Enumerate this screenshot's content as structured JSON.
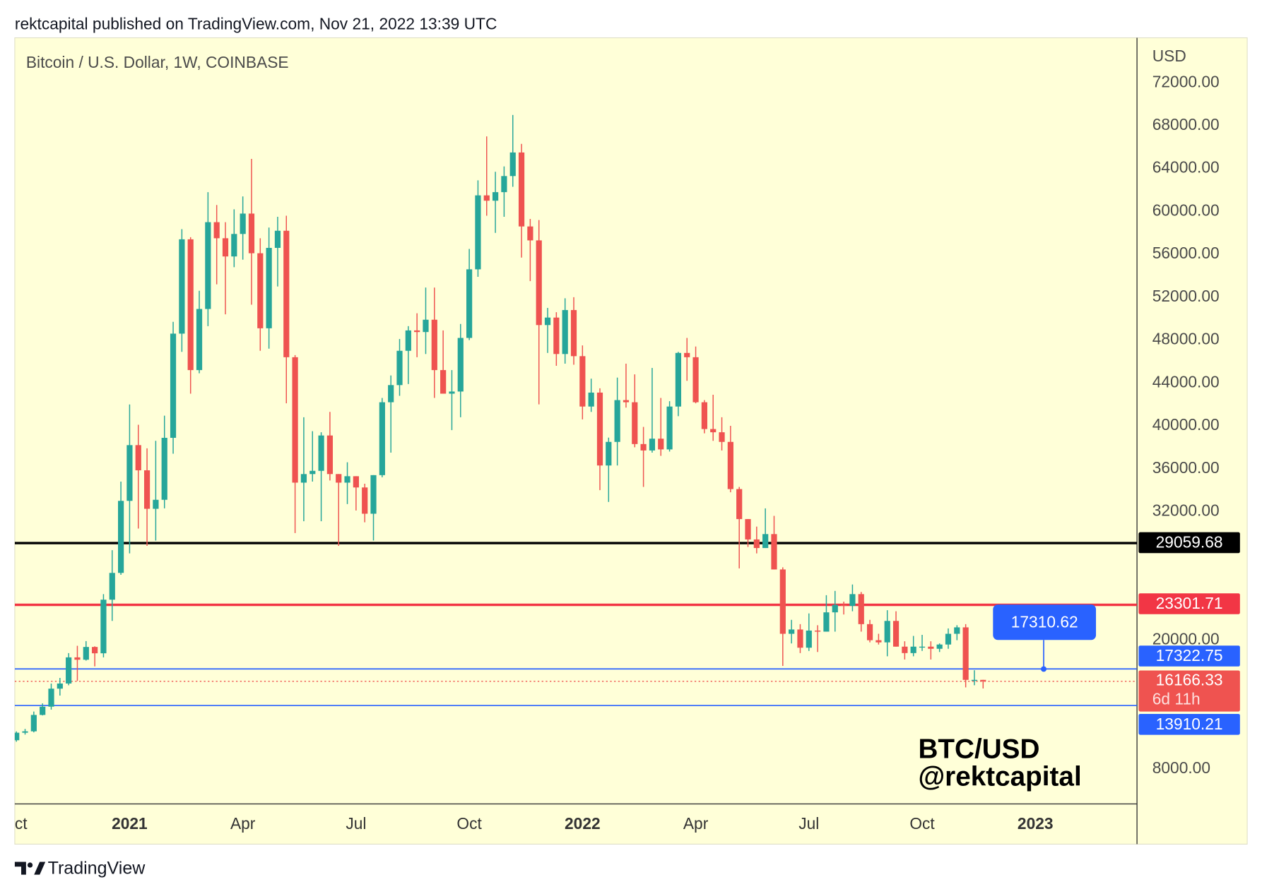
{
  "header": "rektcapital published on TradingView.com, Nov 21, 2022 13:39 UTC",
  "footer": "TradingView",
  "chart_data": {
    "type": "candlestick",
    "title": "Bitcoin / U.S. Dollar, 1W, COINBASE",
    "currency": "USD",
    "watermark": [
      "BTC/USD",
      "@rektcapital"
    ],
    "up_color": "#26a69a",
    "down_color": "#ef5350",
    "background": "#ffffd8",
    "categories": [
      "ct",
      null,
      null,
      null,
      null,
      null,
      null,
      null,
      null,
      null,
      null,
      null,
      null,
      "2021",
      null,
      null,
      null,
      null,
      null,
      null,
      null,
      null,
      null,
      null,
      null,
      null,
      "Apr",
      null,
      null,
      null,
      null,
      null,
      null,
      null,
      null,
      null,
      null,
      null,
      null,
      "Jul",
      null,
      null,
      null,
      null,
      null,
      null,
      null,
      null,
      null,
      null,
      null,
      null,
      "Oct",
      null,
      null,
      null,
      null,
      null,
      null,
      null,
      null,
      null,
      null,
      null,
      null,
      "2022",
      null,
      null,
      null,
      null,
      null,
      null,
      null,
      null,
      null,
      null,
      null,
      null,
      "Apr",
      null,
      null,
      null,
      null,
      null,
      null,
      null,
      null,
      null,
      null,
      null,
      null,
      "Jul",
      null,
      null,
      null,
      null,
      null,
      null,
      null,
      null,
      null,
      null,
      null,
      null,
      "Oct",
      null,
      null,
      null,
      null,
      null,
      null,
      null,
      null,
      null,
      null,
      null,
      null,
      "2023"
    ],
    "open": [
      10670,
      11370,
      11500,
      13030,
      13800,
      15480,
      15960,
      18400,
      18180,
      19370,
      18780,
      23780,
      26280,
      33000,
      38200,
      35850,
      32260,
      33100,
      38880,
      48600,
      57400,
      45200,
      50900,
      59000,
      57500,
      55800,
      57900,
      59800,
      56100,
      49100,
      56600,
      58200,
      46400,
      34700,
      35500,
      35800,
      39100,
      35500,
      34700,
      35300,
      34250,
      31800,
      35400,
      42200,
      43800,
      47000,
      48900,
      48750,
      49900,
      45200,
      43000,
      43200,
      48200,
      54600,
      61500,
      61000,
      61800,
      63300,
      65500,
      58600,
      57300,
      49400,
      50100,
      46700,
      50800,
      46500,
      41800,
      43100,
      36300,
      38500,
      42400,
      42200,
      38300,
      37700,
      38800,
      37800,
      41800,
      46800,
      46400,
      42200,
      39700,
      39400,
      38500,
      34100,
      31300,
      29400,
      28600,
      29900,
      26600,
      20600,
      21000,
      19300,
      20900,
      20800,
      22600,
      23300,
      23200,
      24300,
      21500,
      20000,
      19800,
      21800,
      19400,
      18800,
      19400,
      19400,
      19200,
      19600,
      20600,
      21200,
      16300,
      16300,
      null,
      null,
      null,
      null,
      null,
      null
    ],
    "high": [
      11490,
      11720,
      13350,
      14100,
      15960,
      16480,
      18800,
      19480,
      19920,
      19430,
      24300,
      28400,
      34800,
      41990,
      40100,
      37900,
      38600,
      40950,
      49700,
      58350,
      57600,
      52600,
      61800,
      60600,
      59000,
      60200,
      61400,
      64900,
      57500,
      58500,
      59500,
      59600,
      46600,
      40800,
      39500,
      39400,
      41300,
      35500,
      36600,
      35300,
      34600,
      35400,
      42600,
      44700,
      48100,
      49300,
      50500,
      52900,
      52900,
      48900,
      45200,
      49500,
      56500,
      62900,
      67000,
      63700,
      64200,
      69000,
      66300,
      59300,
      59200,
      51000,
      50600,
      51900,
      52000,
      47500,
      44400,
      43500,
      38900,
      44500,
      45800,
      44800,
      39900,
      45400,
      42600,
      42300,
      46900,
      48200,
      47400,
      42400,
      42900,
      40800,
      40000,
      34300,
      31300,
      30600,
      32300,
      31600,
      26800,
      21900,
      21500,
      22500,
      21400,
      24200,
      24600,
      23600,
      25200,
      24500,
      21900,
      20600,
      22800,
      22700,
      19900,
      20400,
      20500,
      19900,
      19700,
      21100,
      21400,
      21500,
      17200,
      16300,
      null,
      null,
      null,
      null,
      null,
      null
    ],
    "low": [
      10530,
      11200,
      11400,
      12980,
      13530,
      14840,
      15800,
      16200,
      18100,
      17560,
      18400,
      21800,
      26100,
      28100,
      30420,
      28800,
      29300,
      32300,
      37400,
      46900,
      43000,
      44900,
      49300,
      53200,
      50400,
      54800,
      55500,
      51300,
      47000,
      47200,
      53000,
      42100,
      30000,
      31100,
      34800,
      31100,
      34900,
      28800,
      32700,
      32100,
      31000,
      29300,
      35200,
      37500,
      42800,
      43900,
      46400,
      46700,
      42600,
      43000,
      39600,
      40800,
      48000,
      53900,
      59600,
      58000,
      59500,
      62300,
      55700,
      53500,
      42000,
      46800,
      45600,
      45800,
      45700,
      40600,
      41300,
      34000,
      32900,
      36300,
      41700,
      38000,
      34300,
      37500,
      37200,
      37600,
      40900,
      44200,
      42100,
      39300,
      38600,
      37700,
      33800,
      26700,
      28700,
      28100,
      28600,
      26600,
      17600,
      19700,
      18800,
      19000,
      18900,
      20800,
      20800,
      22400,
      22700,
      20800,
      19800,
      19600,
      18500,
      19400,
      18200,
      18500,
      19000,
      18200,
      18900,
      19200,
      20000,
      15600,
      15800,
      15500,
      null,
      null,
      null,
      null,
      null,
      null
    ],
    "close": [
      11370,
      11500,
      13030,
      13800,
      15480,
      15960,
      18400,
      18180,
      19370,
      18780,
      23780,
      26280,
      33000,
      38200,
      35850,
      32260,
      33100,
      38880,
      48600,
      57400,
      45200,
      50900,
      59000,
      57500,
      55800,
      57900,
      59800,
      56100,
      49100,
      56600,
      58200,
      46400,
      34700,
      35500,
      35800,
      39100,
      35500,
      34700,
      35300,
      34250,
      31800,
      35400,
      42200,
      43800,
      47000,
      48900,
      48750,
      49900,
      45200,
      43000,
      43200,
      48200,
      54600,
      61500,
      61000,
      61800,
      63300,
      65500,
      58600,
      57300,
      49400,
      50100,
      46700,
      50800,
      46500,
      41800,
      43100,
      36300,
      38500,
      42400,
      42200,
      38300,
      37700,
      38800,
      37800,
      41800,
      46800,
      46400,
      42200,
      39700,
      39400,
      38500,
      34100,
      31300,
      29400,
      28600,
      29900,
      26600,
      20600,
      21000,
      19300,
      20900,
      20800,
      22600,
      23300,
      23200,
      24300,
      21500,
      20000,
      19800,
      21800,
      19400,
      18800,
      19400,
      19400,
      19200,
      19600,
      20600,
      21200,
      16300,
      16300,
      16166.33,
      null,
      null,
      null,
      null,
      null,
      null
    ],
    "ylim": [
      4725,
      76200
    ],
    "yticks": [
      {
        "value": 72000,
        "label": "72000.00"
      },
      {
        "value": 68000,
        "label": "68000.00"
      },
      {
        "value": 64000,
        "label": "64000.00"
      },
      {
        "value": 60000,
        "label": "60000.00"
      },
      {
        "value": 56000,
        "label": "56000.00"
      },
      {
        "value": 52000,
        "label": "52000.00"
      },
      {
        "value": 48000,
        "label": "48000.00"
      },
      {
        "value": 44000,
        "label": "44000.00"
      },
      {
        "value": 40000,
        "label": "40000.00"
      },
      {
        "value": 36000,
        "label": "36000.00"
      },
      {
        "value": 32000,
        "label": "32000.00"
      },
      {
        "value": 20000,
        "label": "20000.00"
      },
      {
        "value": 8000,
        "label": "8000.00"
      }
    ],
    "levels": [
      {
        "value": 29059.68,
        "color": "#000000",
        "line_width": 3
      },
      {
        "value": 23301.71,
        "color": "#f23645",
        "line_width": 3
      },
      {
        "value": 17322.75,
        "color": "#2962ff",
        "line_width": 1.5
      },
      {
        "value": 13910.21,
        "color": "#2962ff",
        "line_width": 1.5
      }
    ],
    "current_price": {
      "value": 16166.33,
      "countdown": "6d 11h",
      "color": "#ef5350"
    },
    "callout": {
      "value": 17310.62,
      "color": "#2962ff"
    }
  }
}
